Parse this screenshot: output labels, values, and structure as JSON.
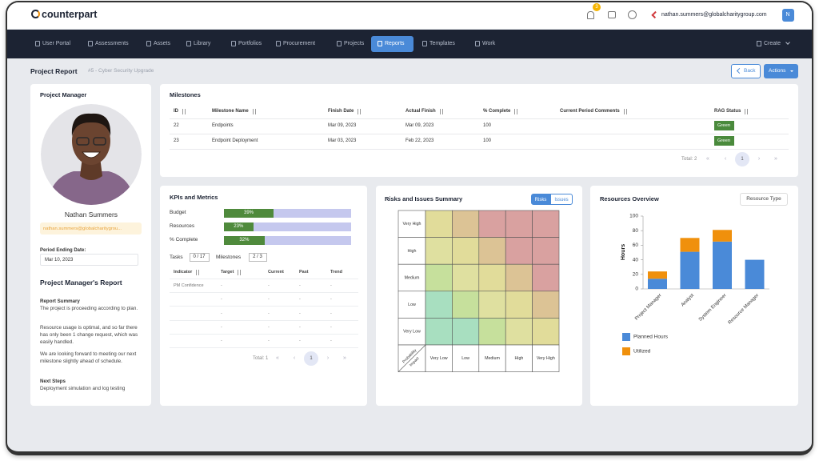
{
  "header": {
    "logo": "counterpart",
    "notification_count": 3,
    "user_email": "nathan.summers@globalcharitygroup.com",
    "avatar": "N"
  },
  "nav": {
    "items": [
      "User Portal",
      "Assessments",
      "Assets",
      "Library",
      "Portfolios",
      "Procurement",
      "Projects",
      "Reports",
      "Templates",
      "Work"
    ],
    "active": "Reports",
    "create": "Create"
  },
  "page": {
    "title": "Project Report",
    "breadcrumb": "#5 - Cyber Security Upgrade",
    "back": "Back",
    "actions": "Actions"
  },
  "manager": {
    "heading": "Project Manager",
    "name": "Nathan Summers",
    "email": "nathan.summers@globalcharitygrou...",
    "period_label": "Period Ending Date:",
    "period_date": "Mar 10, 2023",
    "report_heading": "Project Manager's Report",
    "summary_heading": "Report Summary",
    "summary": [
      "The project is proceeding according to plan.",
      "Resource usage is optimal, and so far there has only been 1 change request, which was easily handled.",
      "We are looking forward to meeting our next milestone slightly ahead of schedule."
    ],
    "next_steps_heading": "Next Steps",
    "next_steps": "Deployment simulation and log testing"
  },
  "milestones": {
    "title": "Milestones",
    "columns": [
      "ID",
      "Milestone Name",
      "Finish Date",
      "Actual Finish",
      "% Complete",
      "Current Period Comments",
      "RAG Status"
    ],
    "rows": [
      {
        "id": 22,
        "name": "Endpoints",
        "finish": "Mar 09, 2023",
        "actual": "Mar 09, 2023",
        "complete": 100,
        "rag": "Green"
      },
      {
        "id": 23,
        "name": "Endpoint Deployment",
        "finish": "Mar 03, 2023",
        "actual": "Feb 22, 2023",
        "complete": 100,
        "rag": "Green"
      }
    ],
    "total": "Total: 2",
    "page": 1,
    "pager_icons": [
      "«",
      "‹",
      "›",
      "»"
    ]
  },
  "kpis": {
    "title": "KPIs and Metrics",
    "categories": [
      "Budget",
      "Resources",
      "% Complete"
    ],
    "values": [
      39,
      23,
      32
    ],
    "value_labels": [
      "39%",
      "23%",
      "32%"
    ],
    "xlim": [
      0,
      100
    ],
    "tasks_label": "Tasks",
    "tasks": "0 / 17",
    "milestones_label": "Milestones",
    "milestones": "2 / 3",
    "columns": [
      "Indicator",
      "Target",
      "Current",
      "Past",
      "Trend"
    ],
    "rows": [
      [
        "PM Confidence",
        "-",
        "-",
        "-",
        "-"
      ],
      [
        null,
        "-",
        "-",
        "-",
        "-"
      ],
      [
        null,
        "-",
        "-",
        "-",
        "-"
      ],
      [
        null,
        "-",
        "-",
        "-",
        "-"
      ],
      [
        null,
        "-",
        "-",
        "-",
        "-"
      ]
    ],
    "total": "Total: 1",
    "page": 1,
    "pager_icons": [
      "«",
      "‹",
      "›",
      "»"
    ]
  },
  "risks": {
    "title": "Risks and Issues Summary",
    "tabs": [
      "Risks",
      "Issues"
    ],
    "active_tab": "Risks",
    "rows": [
      "Very High",
      "High",
      "Medium",
      "Low",
      "Very Low"
    ],
    "columns": [
      "Very Low",
      "Low",
      "Medium",
      "High",
      "Very High"
    ],
    "corner_row": "Probability",
    "corner_col": "Impact"
  },
  "chart_data": {
    "type": "bar",
    "stacked": true,
    "title": "Resources Overview",
    "button": "Resource Type",
    "y_label": "Hours",
    "categories": [
      "Project Manager",
      "Analyst",
      "System Engineer",
      "Resource Manager"
    ],
    "series": [
      {
        "name": "Planned Hours",
        "color": "#4a8ad8",
        "values": [
          14,
          51,
          65,
          40
        ]
      },
      {
        "name": "Utilized",
        "color": "#f0900c",
        "values": [
          10,
          19,
          16,
          0
        ]
      }
    ],
    "ylim": [
      0,
      100
    ],
    "yticks": [
      0,
      20,
      40,
      60,
      80,
      100
    ]
  }
}
